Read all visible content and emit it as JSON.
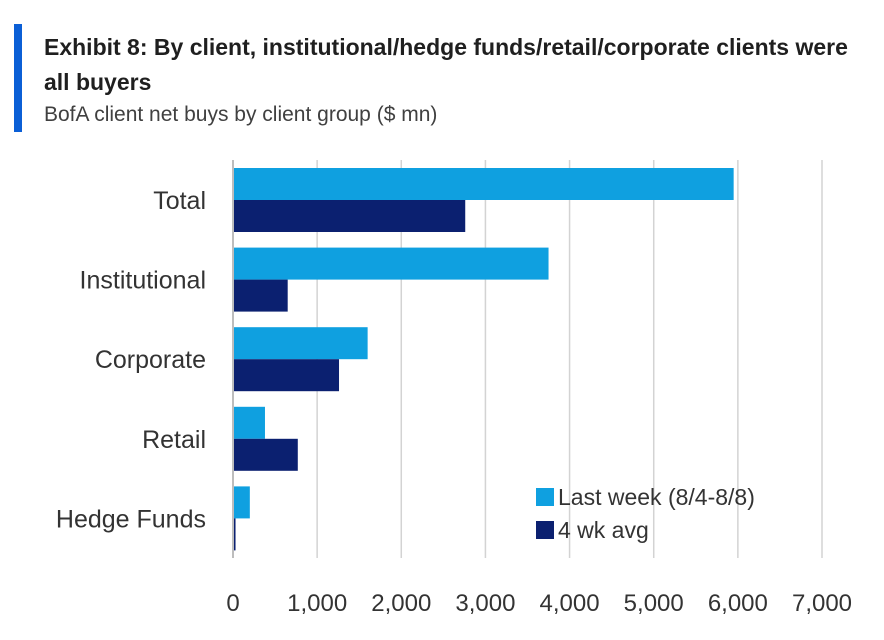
{
  "header": {
    "title": "Exhibit 8: By client, institutional/hedge funds/retail/corporate clients were all buyers",
    "subtitle": "BofA client net buys by client group ($ mn)"
  },
  "colors": {
    "accent": "#0b5fd6",
    "series_last_week": "#0fa0e0",
    "series_4wk": "#0b2070",
    "grid": "#d3d3d3"
  },
  "chart_data": {
    "type": "bar",
    "orientation": "horizontal",
    "title": "Exhibit 8: By client, institutional/hedge funds/retail/corporate clients were all buyers",
    "subtitle": "BofA client net buys by client group ($ mn)",
    "categories": [
      "Total",
      "Institutional",
      "Corporate",
      "Retail",
      "Hedge Funds"
    ],
    "series": [
      {
        "name": "Last week (8/4-8/8)",
        "values": [
          5950,
          3750,
          1600,
          380,
          200
        ]
      },
      {
        "name": "4 wk avg",
        "values": [
          2760,
          650,
          1260,
          770,
          30
        ]
      }
    ],
    "xlim": [
      0,
      7000
    ],
    "xticks": [
      0,
      1000,
      2000,
      3000,
      4000,
      5000,
      6000,
      7000
    ],
    "xtick_labels": [
      "0",
      "1,000",
      "2,000",
      "3,000",
      "4,000",
      "5,000",
      "6,000",
      "7,000"
    ],
    "grid": "vertical",
    "legend_position": "bottom-right"
  }
}
